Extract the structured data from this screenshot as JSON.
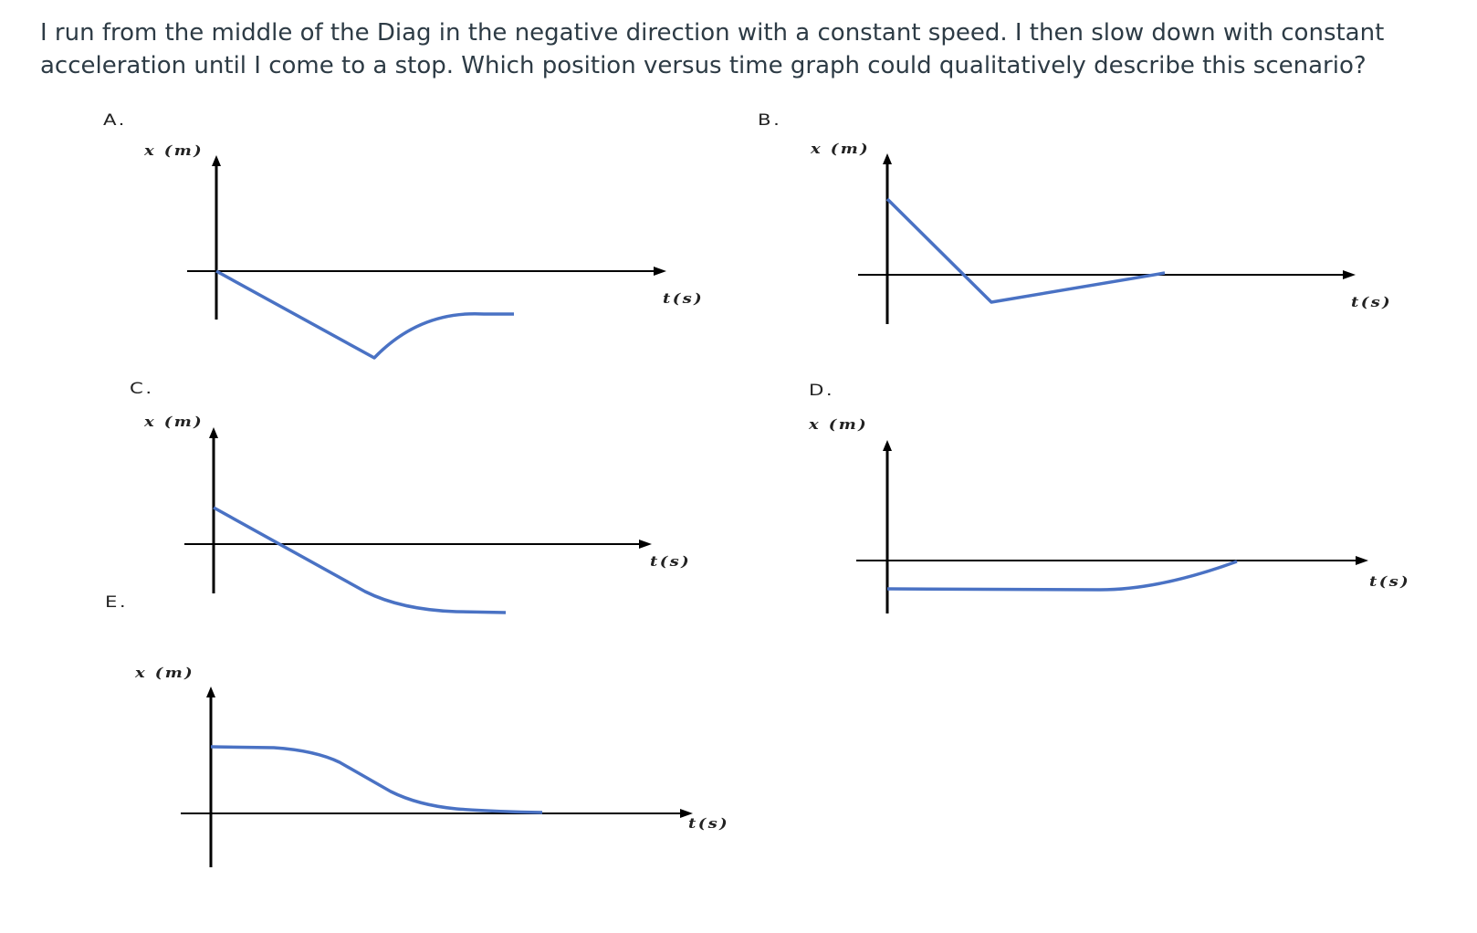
{
  "question": {
    "line1": "I run from the middle of the Diag in the negative  direction with a constant speed. I then slow down with constant",
    "line2": "acceleration until I come to a stop. Which position versus time graph could qualitatively describe this scenario?"
  },
  "options": [
    {
      "letter": "A.",
      "y_axis_label": "x (m)",
      "x_axis_label": "t(s)"
    },
    {
      "letter": "B.",
      "y_axis_label": "x (m)",
      "x_axis_label": "t(s)"
    },
    {
      "letter": "C.",
      "y_axis_label": "x (m)",
      "x_axis_label": "t(s)"
    },
    {
      "letter": "D.",
      "y_axis_label": "x (m)",
      "x_axis_label": "t(s)"
    },
    {
      "letter": "E.",
      "y_axis_label": "x (m)",
      "x_axis_label": "t(s)"
    }
  ],
  "colors": {
    "curve": "#4a72c4",
    "axis": "#000000",
    "text": "#2d3b45"
  }
}
